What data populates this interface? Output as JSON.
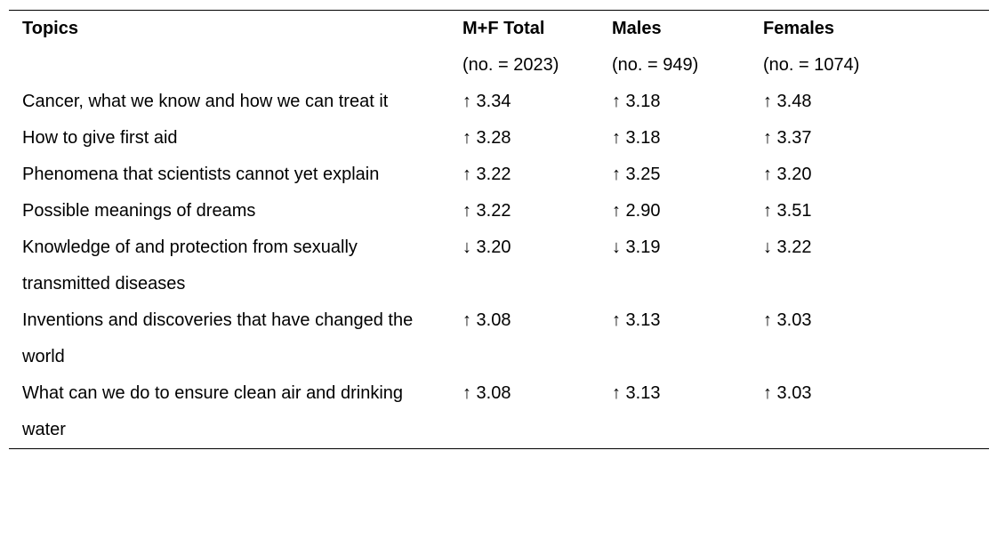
{
  "table": {
    "columns": [
      {
        "title": "Topics"
      },
      {
        "title": "M+F Total",
        "subtitle": "(no. = 2023)"
      },
      {
        "title": "Males",
        "subtitle": "(no. = 949)"
      },
      {
        "title": "Females",
        "subtitle": "(no. = 1074)"
      }
    ],
    "rows": [
      [
        "Cancer, what we know and how we can treat it",
        "↑ 3.34",
        "↑ 3.18",
        "↑ 3.48"
      ],
      [
        "How to give first aid",
        "↑ 3.28",
        "↑ 3.18",
        "↑ 3.37"
      ],
      [
        "Phenomena that scientists cannot yet explain",
        "↑ 3.22",
        "↑ 3.25",
        "↑ 3.20"
      ],
      [
        "Possible meanings of dreams",
        "↑ 3.22",
        "↑ 2.90",
        "↑ 3.51"
      ],
      [
        "Knowledge of and protection from sexually transmitted diseases",
        "↓ 3.20",
        "↓ 3.19",
        "↓ 3.22"
      ],
      [
        "Inventions and discoveries that have changed the world",
        "↑ 3.08",
        "↑ 3.13",
        "↑ 3.03"
      ],
      [
        "What can we do to ensure clean air and drinking water",
        "↑ 3.08",
        "↑ 3.13",
        "↑ 3.03"
      ]
    ]
  }
}
